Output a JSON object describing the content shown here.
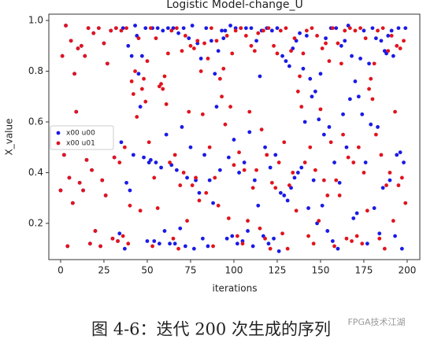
{
  "chart_data": {
    "type": "scatter",
    "title": "Logistic Model-change_U",
    "x_label": "iterations",
    "y_label": "X_value",
    "xlim": [
      -6.8,
      207.3
    ],
    "ylim": [
      0.057,
      1.025
    ],
    "xticks": [
      0,
      25,
      50,
      75,
      100,
      125,
      150,
      175,
      200
    ],
    "yticks": [
      0.2,
      0.4,
      0.6,
      0.8,
      {
        "value": 1,
        "label": "1.0"
      }
    ],
    "legend": "left",
    "x": [
      0,
      1,
      2,
      3,
      4,
      5,
      6,
      7,
      8,
      9,
      10,
      11,
      12,
      13,
      14,
      15,
      16,
      17,
      18,
      19,
      20,
      21,
      22,
      23,
      24,
      25,
      26,
      27,
      28,
      29,
      30,
      31,
      32,
      33,
      34,
      35,
      36,
      37,
      38,
      39,
      40,
      41,
      42,
      43,
      44,
      45,
      46,
      47,
      48,
      49,
      50,
      51,
      52,
      53,
      54,
      55,
      56,
      57,
      58,
      59,
      60,
      61,
      62,
      63,
      64,
      65,
      66,
      67,
      68,
      69,
      70,
      71,
      72,
      73,
      74,
      75,
      76,
      77,
      78,
      79,
      80,
      81,
      82,
      83,
      84,
      85,
      86,
      87,
      88,
      89,
      90,
      91,
      92,
      93,
      94,
      95,
      96,
      97,
      98,
      99,
      100,
      101,
      102,
      103,
      104,
      105,
      106,
      107,
      108,
      109,
      110,
      111,
      112,
      113,
      114,
      115,
      116,
      117,
      118,
      119,
      120,
      121,
      122,
      123,
      124,
      125,
      126,
      127,
      128,
      129,
      130,
      131,
      132,
      133,
      134,
      135,
      136,
      137,
      138,
      139,
      140,
      141,
      142,
      143,
      144,
      145,
      146,
      147,
      148,
      149,
      150,
      151,
      152,
      153,
      154,
      155,
      156,
      157,
      158,
      159,
      160,
      161,
      162,
      163,
      164,
      165,
      166,
      167,
      168,
      169,
      170,
      171,
      172,
      173,
      174,
      175,
      176,
      177,
      178,
      179,
      180,
      181,
      182,
      183,
      184,
      185,
      186,
      187,
      188,
      189,
      190,
      191,
      192,
      193,
      194,
      195,
      196,
      197,
      198,
      199
    ],
    "series": [
      {
        "name": "x00 u00",
        "color": "#1a1ae6",
        "values": [
          0.33,
          0.86,
          0.47,
          0.98,
          0.11,
          0.38,
          0.92,
          0.28,
          0.79,
          0.64,
          0.89,
          0.36,
          0.9,
          0.33,
          0.86,
          0.45,
          0.97,
          0.12,
          0.41,
          0.95,
          0.17,
          0.55,
          0.97,
          0.11,
          0.37,
          0.91,
          0.31,
          0.83,
          0.55,
          0.96,
          0.14,
          0.46,
          0.97,
          0.13,
          0.16,
          0.52,
          0.97,
          0.1,
          0.36,
          0.9,
          0.33,
          0.86,
          0.47,
          0.98,
          0.94,
          0.79,
          0.66,
          0.86,
          0.46,
          0.97,
          0.13,
          0.44,
          0.45,
          0.97,
          0.13,
          0.44,
          0.97,
          0.12,
          0.42,
          0.96,
          0.17,
          0.55,
          0.97,
          0.12,
          0.43,
          0.97,
          0.12,
          0.41,
          0.95,
          0.18,
          0.58,
          0.97,
          0.11,
          0.38,
          0.93,
          0.5,
          0.98,
          0.1,
          0.37,
          0.91,
          0.32,
          0.85,
          0.14,
          0.47,
          0.97,
          0.11,
          0.37,
          0.92,
          0.28,
          0.79,
          0.66,
          0.88,
          0.41,
          0.96,
          0.93,
          0.96,
          0.14,
          0.46,
          0.98,
          0.15,
          0.53,
          0.97,
          0.12,
          0.4,
          0.97,
          0.13,
          0.44,
          0.97,
          0.17,
          0.56,
          0.97,
          0.11,
          0.37,
          0.92,
          0.27,
          0.78,
          0.96,
          0.15,
          0.5,
          0.97,
          0.12,
          0.42,
          0.96,
          0.14,
          0.47,
          0.97,
          0.09,
          0.32,
          0.86,
          0.31,
          0.84,
          0.29,
          0.82,
          0.34,
          0.89,
          0.38,
          0.92,
          0.4,
          0.95,
          0.42,
          0.81,
          0.6,
          0.94,
          0.26,
          0.77,
          0.7,
          0.37,
          0.72,
          0.2,
          0.61,
          0.79,
          0.27,
          0.55,
          0.93,
          0.17,
          0.58,
          0.97,
          0.13,
          0.44,
          0.97,
          0.1,
          0.36,
          0.9,
          0.63,
          0.92,
          0.5,
          0.98,
          0.69,
          0.86,
          0.22,
          0.76,
          0.24,
          0.7,
          0.85,
          0.63,
          0.96,
          0.44,
          0.12,
          0.83,
          0.59,
          0.97,
          0.26,
          0.93,
          0.58,
          0.16,
          0.92,
          0.34,
          0.88,
          0.87,
          0.94,
          0.37,
          0.96,
          0.86,
          0.15,
          0.47,
          0.97,
          0.48,
          0.1,
          0.44,
          0.97
        ]
      },
      {
        "name": "x00 u01",
        "color": "#e0141e",
        "values": [
          0.33,
          0.86,
          0.47,
          0.98,
          0.11,
          0.38,
          0.92,
          0.28,
          0.79,
          0.64,
          0.89,
          0.36,
          0.9,
          0.33,
          0.86,
          0.45,
          0.97,
          0.12,
          0.41,
          0.95,
          0.17,
          0.55,
          0.97,
          0.11,
          0.37,
          0.91,
          0.31,
          0.83,
          0.55,
          0.96,
          0.14,
          0.46,
          0.97,
          0.13,
          0.44,
          0.96,
          0.15,
          0.5,
          0.97,
          0.12,
          0.27,
          0.76,
          0.71,
          0.8,
          0.62,
          0.93,
          0.25,
          0.73,
          0.77,
          0.68,
          0.84,
          0.52,
          0.97,
          0.11,
          0.38,
          0.93,
          0.26,
          0.74,
          0.75,
          0.73,
          0.78,
          0.67,
          0.87,
          0.44,
          0.96,
          0.14,
          0.47,
          0.97,
          0.1,
          0.35,
          0.88,
          0.4,
          0.94,
          0.21,
          0.64,
          0.9,
          0.35,
          0.89,
          0.38,
          0.92,
          0.29,
          0.8,
          0.63,
          0.91,
          0.32,
          0.85,
          0.5,
          0.97,
          0.11,
          0.38,
          0.92,
          0.27,
          0.77,
          0.7,
          0.81,
          0.59,
          0.94,
          0.22,
          0.66,
          0.87,
          0.43,
          0.96,
          0.15,
          0.48,
          0.97,
          0.12,
          0.41,
          0.94,
          0.21,
          0.64,
          0.9,
          0.34,
          0.88,
          0.41,
          0.95,
          0.18,
          0.57,
          0.96,
          0.14,
          0.47,
          0.97,
          0.1,
          0.36,
          0.9,
          0.34,
          0.87,
          0.44,
          0.96,
          0.16,
          0.52,
          0.97,
          0.1,
          0.35,
          0.88,
          0.4,
          0.93,
          0.25,
          0.72,
          0.78,
          0.66,
          0.87,
          0.44,
          0.96,
          0.15,
          0.5,
          0.97,
          0.12,
          0.41,
          0.94,
          0.21,
          0.65,
          0.89,
          0.37,
          0.91,
          0.31,
          0.84,
          0.52,
          0.97,
          0.11,
          0.37,
          0.91,
          0.31,
          0.83,
          0.55,
          0.96,
          0.14,
          0.46,
          0.97,
          0.13,
          0.44,
          0.96,
          0.15,
          0.5,
          0.97,
          0.12,
          0.4,
          0.93,
          0.25,
          0.73,
          0.77,
          0.69,
          0.83,
          0.55,
          0.96,
          0.14,
          0.47,
          0.97,
          0.1,
          0.35,
          0.88,
          0.4,
          0.94,
          0.21,
          0.64,
          0.9,
          0.35,
          0.89,
          0.38,
          0.92,
          0.28
        ]
      }
    ]
  },
  "caption": "图 4-6：迭代 200 次生成的序列",
  "watermark": "FPGA技术江湖"
}
